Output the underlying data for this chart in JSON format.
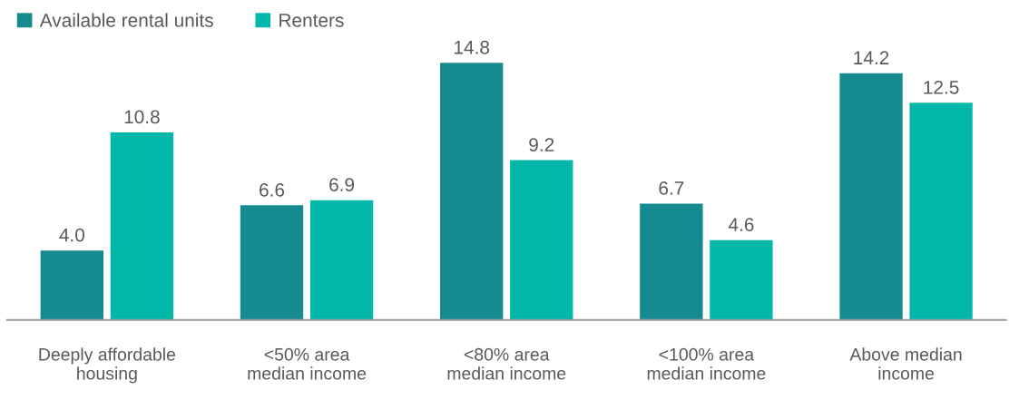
{
  "chart_data": {
    "type": "bar",
    "categories": [
      "Deeply affordable\nhousing",
      "<50% area\nmedian income",
      "<80% area\nmedian income",
      "<100% area\nmedian income",
      "Above median\nincome"
    ],
    "series": [
      {
        "name": "Available rental units",
        "color": "#168b8f",
        "values": [
          4.0,
          6.6,
          14.8,
          6.7,
          14.2
        ],
        "value_labels": [
          "4.0",
          "6.6",
          "14.8",
          "6.7",
          "14.2"
        ]
      },
      {
        "name": "Renters",
        "color": "#03b8a8",
        "values": [
          10.8,
          6.9,
          9.2,
          4.6,
          12.5
        ],
        "value_labels": [
          "10.8",
          "6.9",
          "9.2",
          "4.6",
          "12.5"
        ]
      }
    ],
    "legend": "top left",
    "grid": false
  }
}
